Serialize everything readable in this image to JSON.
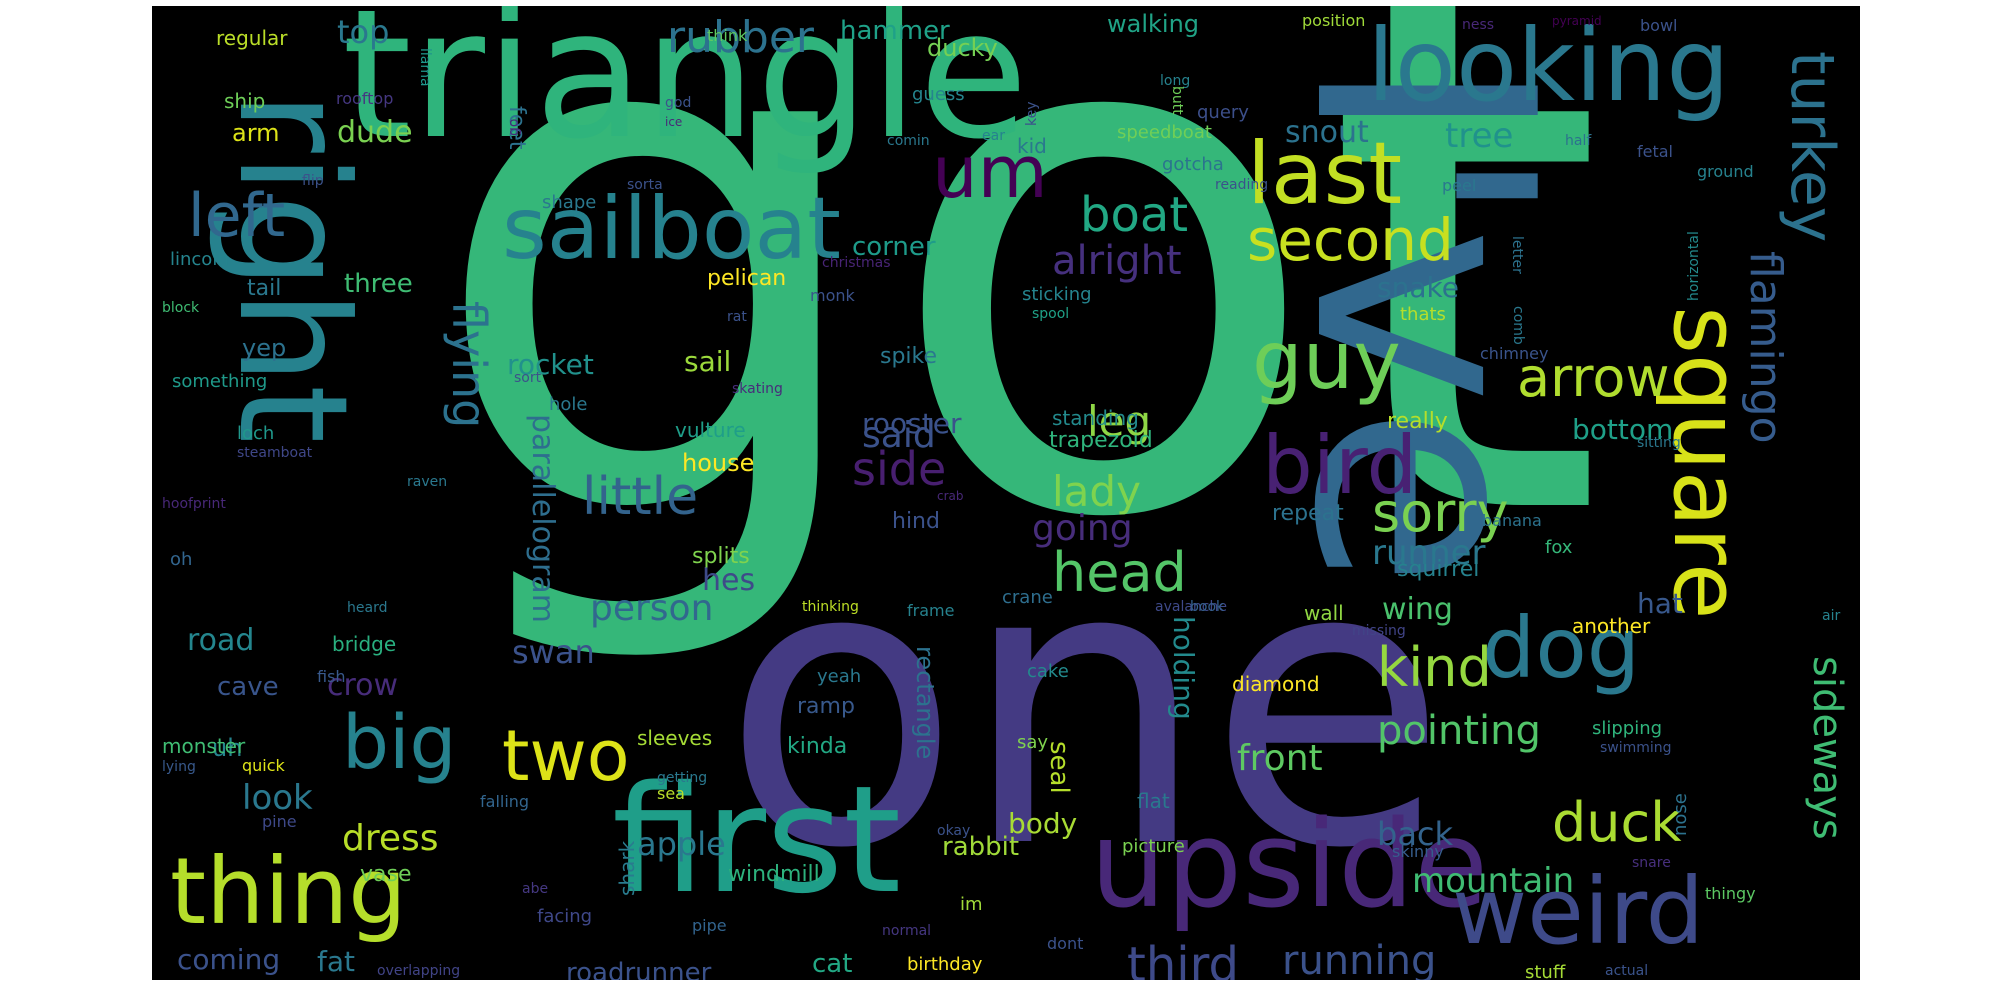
{
  "words": [
    {
      "text": "got",
      "color": "#35b779"
    },
    {
      "text": "I've",
      "color": "#31688e"
    },
    {
      "text": "one",
      "color": "#443a83"
    },
    {
      "text": "triangle",
      "color": "#2fb47c"
    },
    {
      "text": "right",
      "color": "#26828e"
    },
    {
      "text": "first",
      "color": "#1f9e89"
    },
    {
      "text": "upside",
      "color": "#482878"
    },
    {
      "text": "sailboat",
      "color": "#26828e"
    },
    {
      "text": "looking",
      "color": "#2a788e"
    },
    {
      "text": "square",
      "color": "#d8e219"
    },
    {
      "text": "weird",
      "color": "#3e4a89"
    },
    {
      "text": "thing",
      "color": "#b5de2b"
    },
    {
      "text": "um",
      "color": "#440154"
    },
    {
      "text": "guy",
      "color": "#6ece58"
    },
    {
      "text": "bird",
      "color": "#482173"
    },
    {
      "text": "dog",
      "color": "#2a788e"
    },
    {
      "text": "last",
      "color": "#c2df23"
    },
    {
      "text": "turkey",
      "color": "#2c728e"
    },
    {
      "text": "flamingo",
      "color": "#365c8d"
    },
    {
      "text": "two",
      "color": "#dde318"
    },
    {
      "text": "big",
      "color": "#26828e"
    },
    {
      "text": "second",
      "color": "#c8e020"
    },
    {
      "text": "left",
      "color": "#31688e"
    },
    {
      "text": "boat",
      "color": "#22a884"
    },
    {
      "text": "arrow",
      "color": "#b0dd2f"
    },
    {
      "text": "head",
      "color": "#54c568"
    },
    {
      "text": "kind",
      "color": "#95d840"
    },
    {
      "text": "duck",
      "color": "#aadc32"
    },
    {
      "text": "sorry",
      "color": "#7ad151"
    },
    {
      "text": "sideways",
      "color": "#3fbc73"
    },
    {
      "text": "little",
      "color": "#33638d"
    },
    {
      "text": "side",
      "color": "#481f70"
    },
    {
      "text": "flying",
      "color": "#2c728e"
    },
    {
      "text": "rubber",
      "color": "#2c728e"
    },
    {
      "text": "lady",
      "color": "#7fd34e"
    },
    {
      "text": "leg",
      "color": "#8ed645"
    },
    {
      "text": "pointing",
      "color": "#52c569"
    },
    {
      "text": "third",
      "color": "#3e4a89"
    },
    {
      "text": "running",
      "color": "#3b528b"
    },
    {
      "text": "mountain",
      "color": "#3fbc73"
    },
    {
      "text": "person",
      "color": "#31688e"
    },
    {
      "text": "dress",
      "color": "#b8de29"
    },
    {
      "text": "look",
      "color": "#2a788e"
    },
    {
      "text": "alright",
      "color": "#46307e"
    },
    {
      "text": "front",
      "color": "#5ec962"
    },
    {
      "text": "going",
      "color": "#472d7b"
    },
    {
      "text": "runner",
      "color": "#2a788e"
    },
    {
      "text": "parallelogram",
      "color": "#2e6e8e"
    },
    {
      "text": "holding",
      "color": "#238a8d"
    },
    {
      "text": "said",
      "color": "#3b528b"
    },
    {
      "text": "rooster",
      "color": "#3b528b"
    },
    {
      "text": "snout",
      "color": "#2c728e"
    },
    {
      "text": "tree",
      "color": "#20928c"
    },
    {
      "text": "bottom",
      "color": "#1fa088"
    },
    {
      "text": "apple",
      "color": "#2a788e"
    },
    {
      "text": "back",
      "color": "#33638d"
    },
    {
      "text": "swan",
      "color": "#3b528b"
    },
    {
      "text": "rocket",
      "color": "#21918c"
    },
    {
      "text": "wing",
      "color": "#4ac16d"
    },
    {
      "text": "crow",
      "color": "#472c7a"
    },
    {
      "text": "road",
      "color": "#24868e"
    },
    {
      "text": "coming",
      "color": "#3b528b"
    },
    {
      "text": "fat",
      "color": "#2a788e"
    },
    {
      "text": "sail",
      "color": "#9bd93c"
    },
    {
      "text": "body",
      "color": "#a8db34"
    },
    {
      "text": "top",
      "color": "#2a788e"
    },
    {
      "text": "hammer",
      "color": "#1fa188"
    },
    {
      "text": "dude",
      "color": "#7ad151"
    },
    {
      "text": "corner",
      "color": "#1e9b8a"
    },
    {
      "text": "three",
      "color": "#3fbc73"
    },
    {
      "text": "snake",
      "color": "#2c728e"
    },
    {
      "text": "hes",
      "color": "#3e4a89"
    },
    {
      "text": "house",
      "color": "#fde725"
    },
    {
      "text": "seal",
      "color": "#b5de2b"
    },
    {
      "text": "cave",
      "color": "#39558c"
    },
    {
      "text": "hat",
      "color": "#38588c"
    },
    {
      "text": "roadrunner",
      "color": "#3b528b"
    },
    {
      "text": "rectangle",
      "color": "#2c728e"
    },
    {
      "text": "rabbit",
      "color": "#a0da39"
    },
    {
      "text": "cat",
      "color": "#22a884"
    },
    {
      "text": "walking",
      "color": "#20a386"
    },
    {
      "text": "ducky",
      "color": "#75d054"
    },
    {
      "text": "arm",
      "color": "#dde318"
    },
    {
      "text": "feet",
      "color": "#2c728e"
    },
    {
      "text": "yep",
      "color": "#2c728e"
    },
    {
      "text": "splits",
      "color": "#7fd34e"
    },
    {
      "text": "uh",
      "color": "#25848e"
    },
    {
      "text": "ramp",
      "color": "#38598c"
    },
    {
      "text": "kinda",
      "color": "#22a884"
    },
    {
      "text": "windmill",
      "color": "#2db27d"
    },
    {
      "text": "vase",
      "color": "#6ece58"
    },
    {
      "text": "pelican",
      "color": "#fde725"
    },
    {
      "text": "bridge",
      "color": "#29af7f"
    },
    {
      "text": "diamond",
      "color": "#fde725"
    },
    {
      "text": "really",
      "color": "#b5de2b"
    },
    {
      "text": "another",
      "color": "#fde725"
    },
    {
      "text": "spike",
      "color": "#2a788e"
    },
    {
      "text": "vulture",
      "color": "#1f9e89"
    },
    {
      "text": "hind",
      "color": "#3b528b"
    },
    {
      "text": "trapezoid",
      "color": "#2fb47c"
    },
    {
      "text": "standing",
      "color": "#238a8d"
    },
    {
      "text": "repeat",
      "color": "#2c728e"
    },
    {
      "text": "squirrel",
      "color": "#26828e"
    },
    {
      "text": "wall",
      "color": "#90d743"
    },
    {
      "text": "crane",
      "color": "#2e6e8e"
    },
    {
      "text": "sleeves",
      "color": "#a5db36"
    },
    {
      "text": "monster",
      "color": "#3fbc73"
    },
    {
      "text": "shark",
      "color": "#297b8e"
    },
    {
      "text": "flat",
      "color": "#2a788e"
    },
    {
      "text": "picture",
      "color": "#7ad151"
    },
    {
      "text": "skinny",
      "color": "#365d8d"
    },
    {
      "text": "regular",
      "color": "#bade28"
    },
    {
      "text": "ship",
      "color": "#6ece58"
    },
    {
      "text": "guess",
      "color": "#25858e"
    },
    {
      "text": "kid",
      "color": "#2a788e"
    },
    {
      "text": "speedboat",
      "color": "#70cf57"
    },
    {
      "text": "gotcha",
      "color": "#2b748e"
    },
    {
      "text": "query",
      "color": "#3c4f8a"
    },
    {
      "text": "shape",
      "color": "#2a788e"
    },
    {
      "text": "lincoln",
      "color": "#25848e"
    },
    {
      "text": "tail",
      "color": "#2a788e"
    },
    {
      "text": "something",
      "color": "#1f9a8a"
    },
    {
      "text": "sticking",
      "color": "#25848e"
    },
    {
      "text": "thats",
      "color": "#b5de2b"
    },
    {
      "text": "chimney",
      "color": "#3a548c"
    },
    {
      "text": "banana",
      "color": "#2c728e"
    },
    {
      "text": "fox",
      "color": "#35b779"
    },
    {
      "text": "cake",
      "color": "#238a8d"
    },
    {
      "text": "yeah",
      "color": "#2a788e"
    },
    {
      "text": "say",
      "color": "#7fd34e"
    },
    {
      "text": "frame",
      "color": "#26828e"
    },
    {
      "text": "thinking",
      "color": "#bddf26"
    },
    {
      "text": "birthday",
      "color": "#fde725"
    },
    {
      "text": "dont",
      "color": "#3b528b"
    },
    {
      "text": "im",
      "color": "#a0da39"
    },
    {
      "text": "fish",
      "color": "#38598c"
    },
    {
      "text": "quick",
      "color": "#dde318"
    },
    {
      "text": "pine",
      "color": "#3e4989"
    },
    {
      "text": "falling",
      "color": "#32658e"
    },
    {
      "text": "facing",
      "color": "#3f4889"
    },
    {
      "text": "pipe",
      "color": "#32648e"
    },
    {
      "text": "overlapping",
      "color": "#414487"
    },
    {
      "text": "stuff",
      "color": "#a5db36"
    },
    {
      "text": "actual",
      "color": "#3a538b"
    },
    {
      "text": "normal",
      "color": "#453781"
    },
    {
      "text": "okay",
      "color": "#3b528b"
    },
    {
      "text": "sea",
      "color": "#b8de29"
    },
    {
      "text": "getting",
      "color": "#2a788e"
    },
    {
      "text": "abe",
      "color": "#453882"
    },
    {
      "text": "lying",
      "color": "#38598c"
    },
    {
      "text": "slipping",
      "color": "#2fb47c"
    },
    {
      "text": "swimming",
      "color": "#3b528b"
    },
    {
      "text": "snare",
      "color": "#472f7d"
    },
    {
      "text": "thingy",
      "color": "#5cc863"
    },
    {
      "text": "nose",
      "color": "#2c728e"
    },
    {
      "text": "missing",
      "color": "#414487"
    },
    {
      "text": "air",
      "color": "#26828e"
    },
    {
      "text": "avalanche",
      "color": "#3e4989"
    },
    {
      "text": "book",
      "color": "#355f8d"
    },
    {
      "text": "heard",
      "color": "#2a788e"
    },
    {
      "text": "oh",
      "color": "#32658e"
    },
    {
      "text": "hoofprint",
      "color": "#482878"
    },
    {
      "text": "raven",
      "color": "#2a788e"
    },
    {
      "text": "loch",
      "color": "#1f988b"
    },
    {
      "text": "steamboat",
      "color": "#3f4788"
    },
    {
      "text": "hole",
      "color": "#2a788e"
    },
    {
      "text": "sort",
      "color": "#3b528b"
    },
    {
      "text": "skating",
      "color": "#472d7b"
    },
    {
      "text": "rat",
      "color": "#3b528b"
    },
    {
      "text": "spool",
      "color": "#1fa187"
    },
    {
      "text": "monk",
      "color": "#3b528b"
    },
    {
      "text": "christmas",
      "color": "#482475"
    },
    {
      "text": "block",
      "color": "#3fbc73"
    },
    {
      "text": "comb",
      "color": "#2a788e"
    },
    {
      "text": "letter",
      "color": "#2c728e"
    },
    {
      "text": "horizontal",
      "color": "#238a8d"
    },
    {
      "text": "sitting",
      "color": "#2a788e"
    },
    {
      "text": "ground",
      "color": "#26828e"
    },
    {
      "text": "peel",
      "color": "#2a788e"
    },
    {
      "text": "reading",
      "color": "#3b528b"
    },
    {
      "text": "fetal",
      "color": "#3b528b"
    },
    {
      "text": "half",
      "color": "#2c728e"
    },
    {
      "text": "bowl",
      "color": "#3b528b"
    },
    {
      "text": "pyramid",
      "color": "#440154"
    },
    {
      "text": "ness",
      "color": "#482878"
    },
    {
      "text": "position",
      "color": "#a0da39"
    },
    {
      "text": "long",
      "color": "#26828e"
    },
    {
      "text": "butt",
      "color": "#6ece58"
    },
    {
      "text": "key",
      "color": "#3b528b"
    },
    {
      "text": "ear",
      "color": "#26828e"
    },
    {
      "text": "comin",
      "color": "#2a788e"
    },
    {
      "text": "god",
      "color": "#3b528b"
    },
    {
      "text": "ice",
      "color": "#482878"
    },
    {
      "text": "go",
      "color": "#472c7a"
    },
    {
      "text": "llama",
      "color": "#1f968b"
    },
    {
      "text": "rooftop",
      "color": "#453781"
    },
    {
      "text": "think",
      "color": "#5ec962"
    },
    {
      "text": "sorta",
      "color": "#3b528b"
    },
    {
      "text": "flip",
      "color": "#3b528b"
    },
    {
      "text": "crab",
      "color": "#482878"
    }
  ]
}
